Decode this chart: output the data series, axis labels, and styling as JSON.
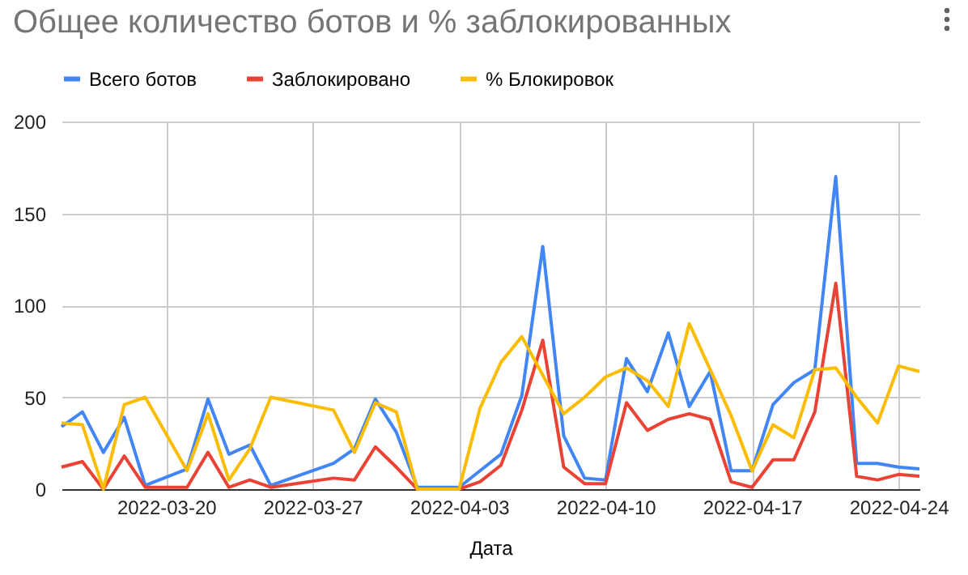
{
  "chart_data": {
    "type": "line",
    "title": "Общее количество ботов и % заблокированных",
    "xlabel": "Дата",
    "x": [
      "2022-03-15",
      "2022-03-16",
      "2022-03-17",
      "2022-03-18",
      "2022-03-19",
      "2022-03-21",
      "2022-03-22",
      "2022-03-23",
      "2022-03-24",
      "2022-03-25",
      "2022-03-28",
      "2022-03-29",
      "2022-03-30",
      "2022-03-31",
      "2022-04-01",
      "2022-04-02",
      "2022-04-03",
      "2022-04-04",
      "2022-04-05",
      "2022-04-06",
      "2022-04-07",
      "2022-04-08",
      "2022-04-09",
      "2022-04-10",
      "2022-04-11",
      "2022-04-12",
      "2022-04-13",
      "2022-04-14",
      "2022-04-15",
      "2022-04-16",
      "2022-04-17",
      "2022-04-18",
      "2022-04-19",
      "2022-04-20",
      "2022-04-21",
      "2022-04-22",
      "2022-04-23",
      "2022-04-24",
      "2022-04-25"
    ],
    "series": [
      {
        "name": "Всего ботов",
        "color": "#4285f4",
        "values": [
          34,
          42,
          20,
          39,
          2,
          11,
          49,
          19,
          24,
          2,
          14,
          22,
          49,
          31,
          1,
          1,
          1,
          10,
          19,
          51,
          132,
          29,
          6,
          5,
          71,
          53,
          85,
          45,
          64,
          10,
          10,
          46,
          58,
          65,
          170,
          14,
          14,
          12,
          11
        ]
      },
      {
        "name": "Заблокировано",
        "color": "#ea4335",
        "values": [
          12,
          15,
          0,
          18,
          1,
          1,
          20,
          1,
          5,
          1,
          6,
          5,
          23,
          12,
          0,
          0,
          0,
          4,
          13,
          43,
          81,
          12,
          3,
          3,
          47,
          32,
          38,
          41,
          38,
          4,
          1,
          16,
          16,
          42,
          112,
          7,
          5,
          8,
          7
        ]
      },
      {
        "name": "% Блокировок",
        "color": "#fbbc04",
        "values": [
          36,
          35,
          0,
          46,
          50,
          10,
          41,
          5,
          22,
          50,
          43,
          20,
          47,
          42,
          0,
          0,
          0,
          44,
          69,
          83,
          62,
          41,
          50,
          61,
          66,
          59,
          45,
          90,
          65,
          40,
          10,
          35,
          28,
          65,
          66,
          50,
          36,
          67,
          64
        ]
      }
    ],
    "xlim": [
      "2022-03-15",
      "2022-04-25"
    ],
    "xticks": [
      "2022-03-20",
      "2022-03-27",
      "2022-04-03",
      "2022-04-10",
      "2022-04-17",
      "2022-04-24"
    ],
    "ylim": [
      0,
      200
    ],
    "yticks": [
      0,
      50,
      100,
      150,
      200
    ],
    "grid": true,
    "legend": "top",
    "marker": "none",
    "line_style": "solid"
  }
}
